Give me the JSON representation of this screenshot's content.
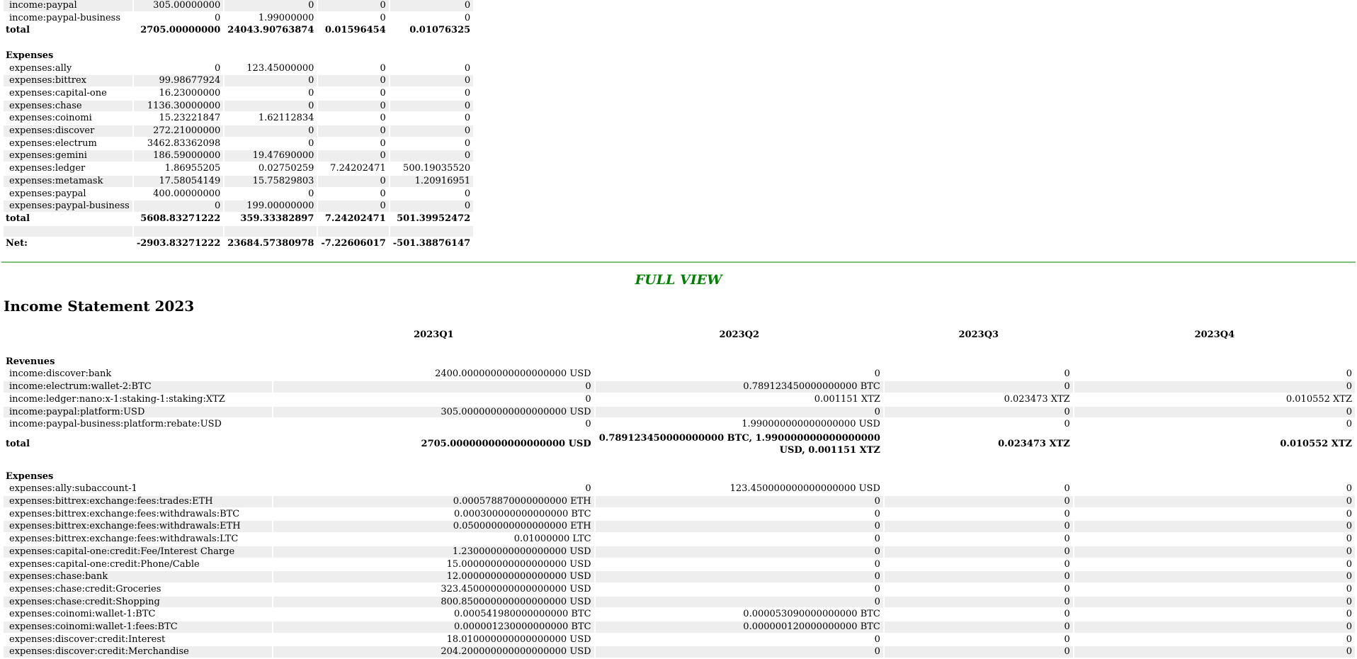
{
  "summary": {
    "revenue_rows": [
      {
        "label": "income:paypal",
        "values": [
          "305.00000000",
          "0",
          "0",
          "0"
        ]
      },
      {
        "label": "income:paypal-business",
        "values": [
          "0",
          "1.99000000",
          "0",
          "0"
        ]
      }
    ],
    "revenue_total": {
      "label": "total",
      "values": [
        "2705.00000000",
        "24043.90763874",
        "0.01596454",
        "0.01076325"
      ]
    },
    "expenses_heading": "Expenses",
    "expense_rows": [
      {
        "label": "expenses:ally",
        "values": [
          "0",
          "123.45000000",
          "0",
          "0"
        ]
      },
      {
        "label": "expenses:bittrex",
        "values": [
          "99.98677924",
          "0",
          "0",
          "0"
        ]
      },
      {
        "label": "expenses:capital-one",
        "values": [
          "16.23000000",
          "0",
          "0",
          "0"
        ]
      },
      {
        "label": "expenses:chase",
        "values": [
          "1136.30000000",
          "0",
          "0",
          "0"
        ]
      },
      {
        "label": "expenses:coinomi",
        "values": [
          "15.23221847",
          "1.62112834",
          "0",
          "0"
        ]
      },
      {
        "label": "expenses:discover",
        "values": [
          "272.21000000",
          "0",
          "0",
          "0"
        ]
      },
      {
        "label": "expenses:electrum",
        "values": [
          "3462.83362098",
          "0",
          "0",
          "0"
        ]
      },
      {
        "label": "expenses:gemini",
        "values": [
          "186.59000000",
          "19.47690000",
          "0",
          "0"
        ]
      },
      {
        "label": "expenses:ledger",
        "values": [
          "1.86955205",
          "0.02750259",
          "7.24202471",
          "500.19035520"
        ]
      },
      {
        "label": "expenses:metamask",
        "values": [
          "17.58054149",
          "15.75829803",
          "0",
          "1.20916951"
        ]
      },
      {
        "label": "expenses:paypal",
        "values": [
          "400.00000000",
          "0",
          "0",
          "0"
        ]
      },
      {
        "label": "expenses:paypal-business",
        "values": [
          "0",
          "199.00000000",
          "0",
          "0"
        ]
      }
    ],
    "expense_total": {
      "label": "total",
      "values": [
        "5608.83271222",
        "359.33382897",
        "7.24202471",
        "501.39952472"
      ]
    },
    "net": {
      "label": "Net:",
      "values": [
        "-2903.83271222",
        "23684.57380978",
        "-7.22606017",
        "-501.38876147"
      ]
    }
  },
  "full_view_label": "FULL VIEW",
  "income_statement": {
    "title": "Income Statement 2023",
    "columns": [
      "2023Q1",
      "2023Q2",
      "2023Q3",
      "2023Q4"
    ],
    "revenues_heading": "Revenues",
    "revenue_rows": [
      {
        "label": "income:discover:bank",
        "values": [
          "2400.000000000000000000 USD",
          "0",
          "0",
          "0"
        ]
      },
      {
        "label": "income:electrum:wallet-2:BTC",
        "values": [
          "0",
          "0.789123450000000000 BTC",
          "0",
          "0"
        ]
      },
      {
        "label": "income:ledger:nano:x-1:staking-1:staking:XTZ",
        "values": [
          "0",
          "0.001151 XTZ",
          "0.023473 XTZ",
          "0.010552 XTZ"
        ]
      },
      {
        "label": "income:paypal:platform:USD",
        "values": [
          "305.000000000000000000 USD",
          "0",
          "0",
          "0"
        ]
      },
      {
        "label": "income:paypal-business:platform:rebate:USD",
        "values": [
          "0",
          "1.990000000000000000 USD",
          "0",
          "0"
        ]
      }
    ],
    "revenue_total": {
      "label": "total",
      "values": [
        "2705.000000000000000000 USD",
        "0.789123450000000000 BTC, 1.990000000000000000 USD, 0.001151 XTZ",
        "0.023473 XTZ",
        "0.010552 XTZ"
      ]
    },
    "expenses_heading": "Expenses",
    "expense_rows": [
      {
        "label": "expenses:ally:subaccount-1",
        "values": [
          "0",
          "123.450000000000000000 USD",
          "0",
          "0"
        ]
      },
      {
        "label": "expenses:bittrex:exchange:fees:trades:ETH",
        "values": [
          "0.000578870000000000 ETH",
          "0",
          "0",
          "0"
        ]
      },
      {
        "label": "expenses:bittrex:exchange:fees:withdrawals:BTC",
        "values": [
          "0.000300000000000000 BTC",
          "0",
          "0",
          "0"
        ]
      },
      {
        "label": "expenses:bittrex:exchange:fees:withdrawals:ETH",
        "values": [
          "0.050000000000000000 ETH",
          "0",
          "0",
          "0"
        ]
      },
      {
        "label": "expenses:bittrex:exchange:fees:withdrawals:LTC",
        "values": [
          "0.01000000 LTC",
          "0",
          "0",
          "0"
        ]
      },
      {
        "label": "expenses:capital-one:credit:Fee/Interest Charge",
        "values": [
          "1.230000000000000000 USD",
          "0",
          "0",
          "0"
        ]
      },
      {
        "label": "expenses:capital-one:credit:Phone/Cable",
        "values": [
          "15.000000000000000000 USD",
          "0",
          "0",
          "0"
        ]
      },
      {
        "label": "expenses:chase:bank",
        "values": [
          "12.000000000000000000 USD",
          "0",
          "0",
          "0"
        ]
      },
      {
        "label": "expenses:chase:credit:Groceries",
        "values": [
          "323.450000000000000000 USD",
          "0",
          "0",
          "0"
        ]
      },
      {
        "label": "expenses:chase:credit:Shopping",
        "values": [
          "800.850000000000000000 USD",
          "0",
          "0",
          "0"
        ]
      },
      {
        "label": "expenses:coinomi:wallet-1:BTC",
        "values": [
          "0.000541980000000000 BTC",
          "0.000053090000000000 BTC",
          "0",
          "0"
        ]
      },
      {
        "label": "expenses:coinomi:wallet-1:fees:BTC",
        "values": [
          "0.000001230000000000 BTC",
          "0.000000120000000000 BTC",
          "0",
          "0"
        ]
      },
      {
        "label": "expenses:discover:credit:Interest",
        "values": [
          "18.010000000000000000 USD",
          "0",
          "0",
          "0"
        ]
      },
      {
        "label": "expenses:discover:credit:Merchandise",
        "values": [
          "204.200000000000000000 USD",
          "0",
          "0",
          "0"
        ]
      }
    ]
  }
}
